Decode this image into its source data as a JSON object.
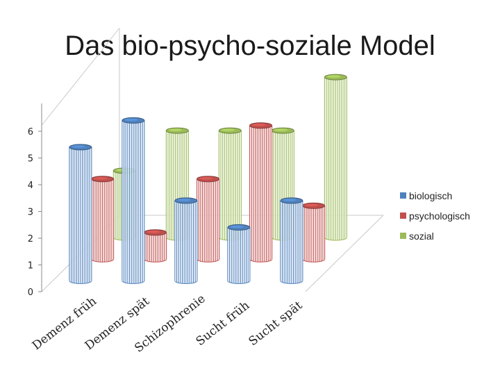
{
  "chart_data": {
    "type": "bar",
    "title": "Das bio-psycho-soziale Model",
    "categories": [
      "Demenz früh",
      "Demenz spät",
      "Schizophrenie",
      "Sucht früh",
      "Sucht spät"
    ],
    "series": [
      {
        "name": "biologisch",
        "color": "#4F81BD",
        "values": [
          5,
          6,
          3,
          2,
          3
        ]
      },
      {
        "name": "psychologisch",
        "color": "#C0504D",
        "values": [
          3,
          1,
          3,
          5,
          2
        ]
      },
      {
        "name": "sozial",
        "color": "#9BBB59",
        "values": [
          2.5,
          4,
          4,
          4,
          6
        ]
      }
    ],
    "y_ticks": [
      "0",
      "1",
      "2",
      "3",
      "4",
      "5",
      "6"
    ],
    "ylim": [
      0,
      6
    ],
    "legend_position": "right",
    "grid": false,
    "style": "3d-cylinder-hatched"
  }
}
